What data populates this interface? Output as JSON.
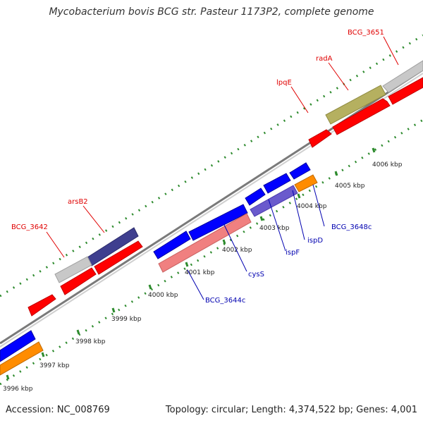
{
  "title": "Mycobacterium bovis BCG str. Pasteur 1173P2, complete genome",
  "footer": {
    "accession": "Accession: NC_008769",
    "info": "Topology: circular; Length: 4,374,522 bp; Genes: 4,001"
  },
  "colors": {
    "backbone": "#7a7a7a",
    "tick": "#2e8b2e",
    "gene_red": "#ff0000",
    "gene_blue": "#0000ff",
    "gene_navy": "#3f3f8f",
    "gene_orange": "#ff8c00",
    "gene_pink": "#f08080",
    "gene_olive": "#b5b060",
    "gene_gray": "#c8c8c8",
    "gene_purple": "#6a5acd",
    "label_red": "#e00000",
    "label_blue": "#0000b0"
  },
  "scale": {
    "kbp_ticks": [
      "3996 kbp",
      "3997 kbp",
      "3998 kbp",
      "3999 kbp",
      "4000 kbp",
      "4001 kbp",
      "4002 kbp",
      "4003 kbp",
      "4004 kbp",
      "4005 kbp",
      "4006 kbp"
    ]
  },
  "gene_labels": [
    {
      "text": "BCG_3651",
      "color": "red"
    },
    {
      "text": "radA",
      "color": "red"
    },
    {
      "text": "lpqE",
      "color": "red"
    },
    {
      "text": "arsB2",
      "color": "red"
    },
    {
      "text": "BCG_3642",
      "color": "red"
    },
    {
      "text": "BCG_3648c",
      "color": "blue"
    },
    {
      "text": "ispD",
      "color": "blue"
    },
    {
      "text": "ispF",
      "color": "blue"
    },
    {
      "text": "cysS",
      "color": "blue"
    },
    {
      "text": "BCG_3644c",
      "color": "blue"
    }
  ]
}
